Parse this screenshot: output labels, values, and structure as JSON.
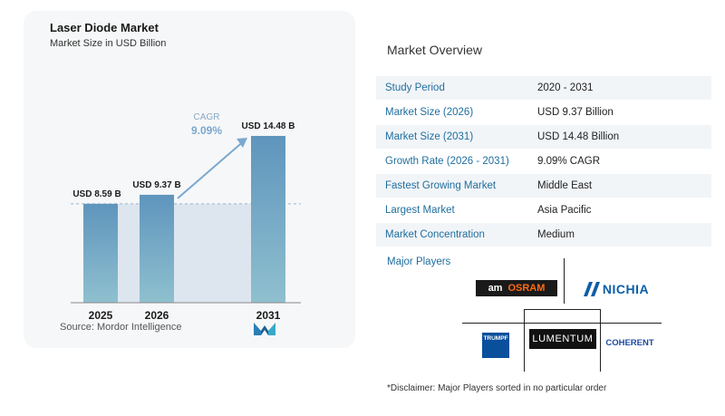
{
  "chart_data": {
    "type": "bar",
    "title": "Laser Diode Market",
    "subtitle": "Market Size in USD Billion",
    "categories": [
      "2025",
      "2026",
      "2031"
    ],
    "values": [
      8.59,
      9.37,
      14.48
    ],
    "data_labels": [
      "USD 8.59 B",
      "USD 9.37 B",
      "USD 14.48 B"
    ],
    "annotation": {
      "label": "CAGR",
      "value": "9.09%"
    },
    "xlabel": "",
    "ylabel": "",
    "ylim": [
      0,
      15.5
    ],
    "grid": false,
    "bar_color": "#5f95bd",
    "bar_color_light": "#8fc0cf",
    "shade_color": "#dde6ef",
    "annotation_color": "#7aa8cf"
  },
  "source": "Source:  Mordor Intelligence",
  "overview": {
    "title": "Market Overview",
    "rows": [
      {
        "label": "Study Period",
        "value": "2020 - 2031"
      },
      {
        "label": "Market Size (2026)",
        "value": "USD 9.37 Billion"
      },
      {
        "label": "Market Size (2031)",
        "value": "USD 14.48 Billion"
      },
      {
        "label": "Growth Rate (2026 - 2031)",
        "value": "9.09% CAGR"
      },
      {
        "label": "Fastest Growing Market",
        "value": "Middle East"
      },
      {
        "label": "Largest Market",
        "value": "Asia Pacific"
      },
      {
        "label": "Market Concentration",
        "value": "Medium"
      }
    ]
  },
  "players": {
    "title": "Major Players",
    "ams": "am",
    "osram": "OSRAM",
    "nichia": "NICHIA",
    "trumpf": "TRUMPF",
    "lumentum": "LUMENTUM",
    "coherent": "COHERENT"
  },
  "disclaimer": "*Disclaimer: Major Players sorted in no particular order"
}
